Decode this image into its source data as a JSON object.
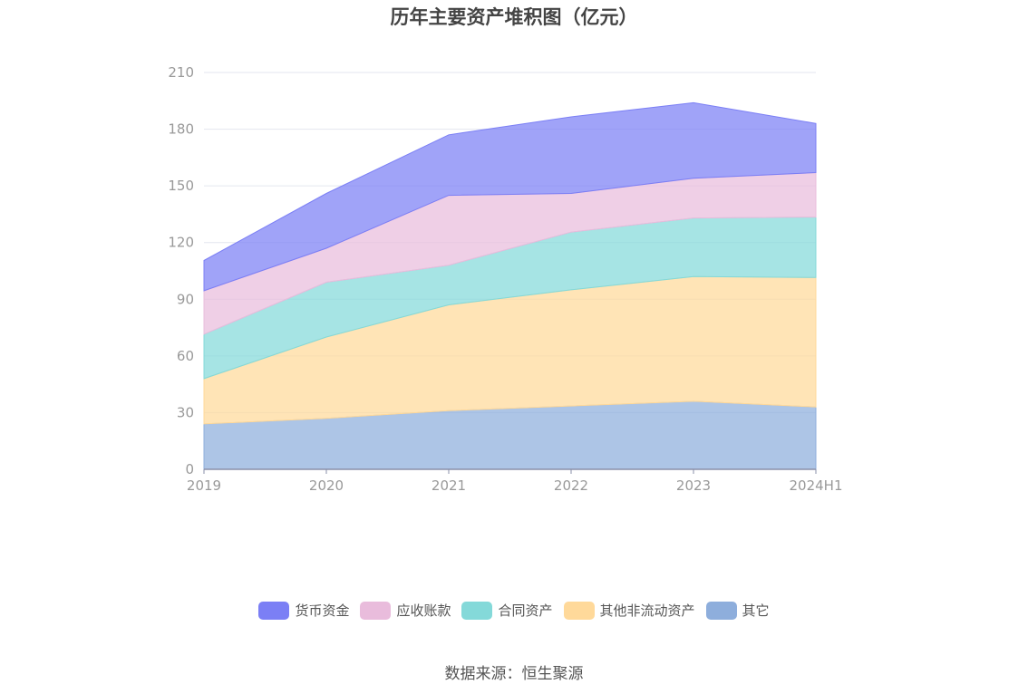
{
  "chart_data": {
    "type": "area",
    "stacked": true,
    "title": "历年主要资产堆积图（亿元）",
    "categories": [
      "2019",
      "2020",
      "2021",
      "2022",
      "2023",
      "2024H1"
    ],
    "ylim": [
      0,
      210
    ],
    "yticks": [
      0,
      30,
      60,
      90,
      120,
      150,
      180,
      210
    ],
    "grid": true,
    "legend_position": "bottom",
    "series": [
      {
        "name": "其它",
        "color": "#8eaedc",
        "values": [
          24,
          27,
          31,
          33.5,
          36,
          33
        ]
      },
      {
        "name": "其他非流动资产",
        "color": "#ffd99a",
        "values": [
          24,
          43,
          56,
          61.5,
          66,
          68.5
        ]
      },
      {
        "name": "合同资产",
        "color": "#84d9d9",
        "values": [
          23.5,
          29,
          21,
          30.5,
          31,
          32
        ]
      },
      {
        "name": "应收账款",
        "color": "#e9bcdc",
        "values": [
          23,
          18,
          37,
          20.5,
          21,
          23.5
        ]
      },
      {
        "name": "货币资金",
        "color": "#7b7ff5",
        "values": [
          16,
          29,
          32,
          40.5,
          40,
          26
        ]
      }
    ]
  },
  "legend_order": [
    4,
    3,
    2,
    1,
    0
  ],
  "source": "数据来源：恒生聚源"
}
